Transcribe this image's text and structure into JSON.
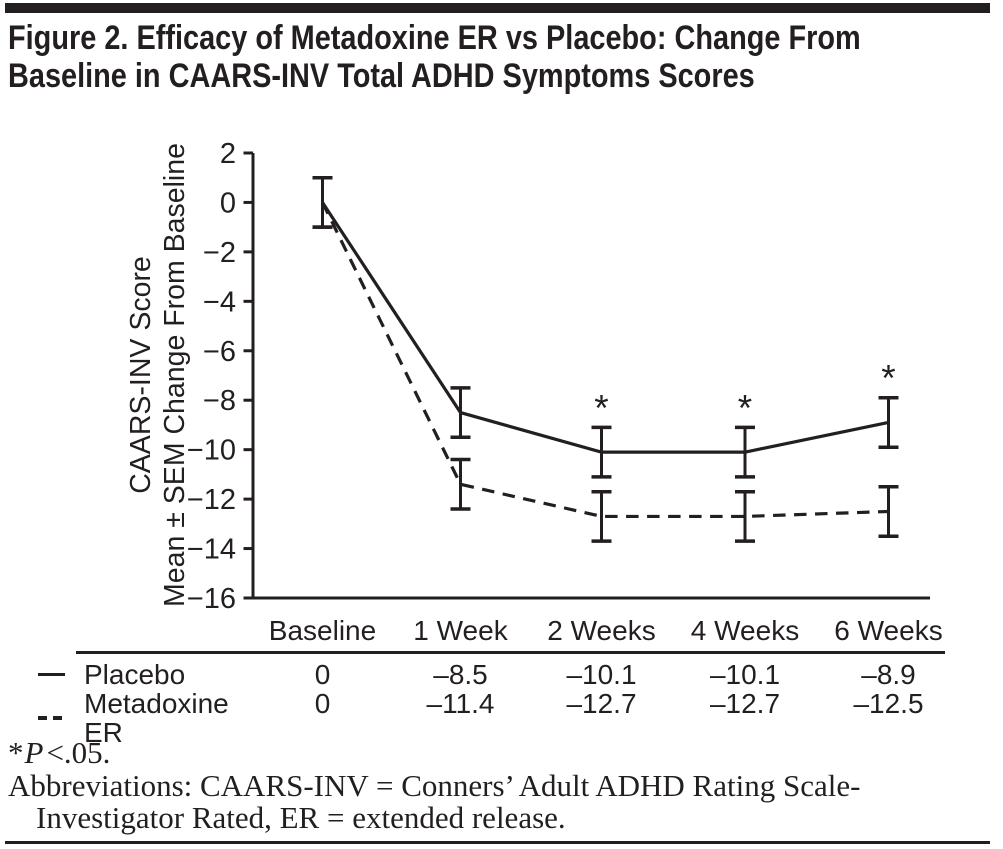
{
  "header": {
    "title": "Figure 2. Efficacy of Metadoxine ER vs Placebo: Change From\nBaseline in CAARS-INV Total ADHD Symptoms Scores"
  },
  "chart_data": {
    "type": "line",
    "categories": [
      "Baseline",
      "1 Week",
      "2 Weeks",
      "4 Weeks",
      "6 Weeks"
    ],
    "series": [
      {
        "name": "Placebo",
        "line_style": "solid",
        "values": [
          0,
          -8.5,
          -10.1,
          -10.1,
          -8.9
        ],
        "sem": [
          1.0,
          1.0,
          1.0,
          1.0,
          1.0
        ],
        "significant": [
          false,
          false,
          true,
          true,
          true
        ]
      },
      {
        "name": "Metadoxine ER",
        "line_style": "dashed",
        "values": [
          0,
          -11.4,
          -12.7,
          -12.7,
          -12.5
        ],
        "sem": [
          1.0,
          1.0,
          1.0,
          1.0,
          1.0
        ],
        "significant": [
          false,
          false,
          false,
          false,
          false
        ]
      }
    ],
    "ylabel_lines": [
      "CAARS-INV Score",
      "Mean ± SEM Change From Baseline"
    ],
    "yticks": [
      2,
      0,
      -2,
      -4,
      -6,
      -8,
      -10,
      -12,
      -14,
      -16
    ],
    "ylim": [
      -16,
      2
    ],
    "xlabel": "",
    "grid": false,
    "legend_position": "table-below",
    "significance_marker": "*",
    "error_bar_style": "caps"
  },
  "table": {
    "columns": [
      "Baseline",
      "1 Week",
      "2 Weeks",
      "4 Weeks",
      "6 Weeks"
    ],
    "rows": [
      {
        "label": "Placebo",
        "symbol": "solid-line",
        "values": [
          "0",
          "–8.5",
          "–10.1",
          "–10.1",
          "–8.9"
        ]
      },
      {
        "label": "Metadoxine ER",
        "symbol": "dashed-line",
        "values": [
          "0",
          "–11.4",
          "–12.7",
          "–12.7",
          "–12.5"
        ]
      }
    ]
  },
  "footnotes": {
    "significance": {
      "marker": "*",
      "variable": "P",
      "value": "<.05."
    },
    "abbreviation_lines": [
      "Abbreviations: CAARS-INV = Conners’ Adult ADHD Rating Scale-",
      "Investigator Rated, ER = extended release."
    ]
  },
  "colors": {
    "ink": "#231f20",
    "background": "#ffffff"
  }
}
